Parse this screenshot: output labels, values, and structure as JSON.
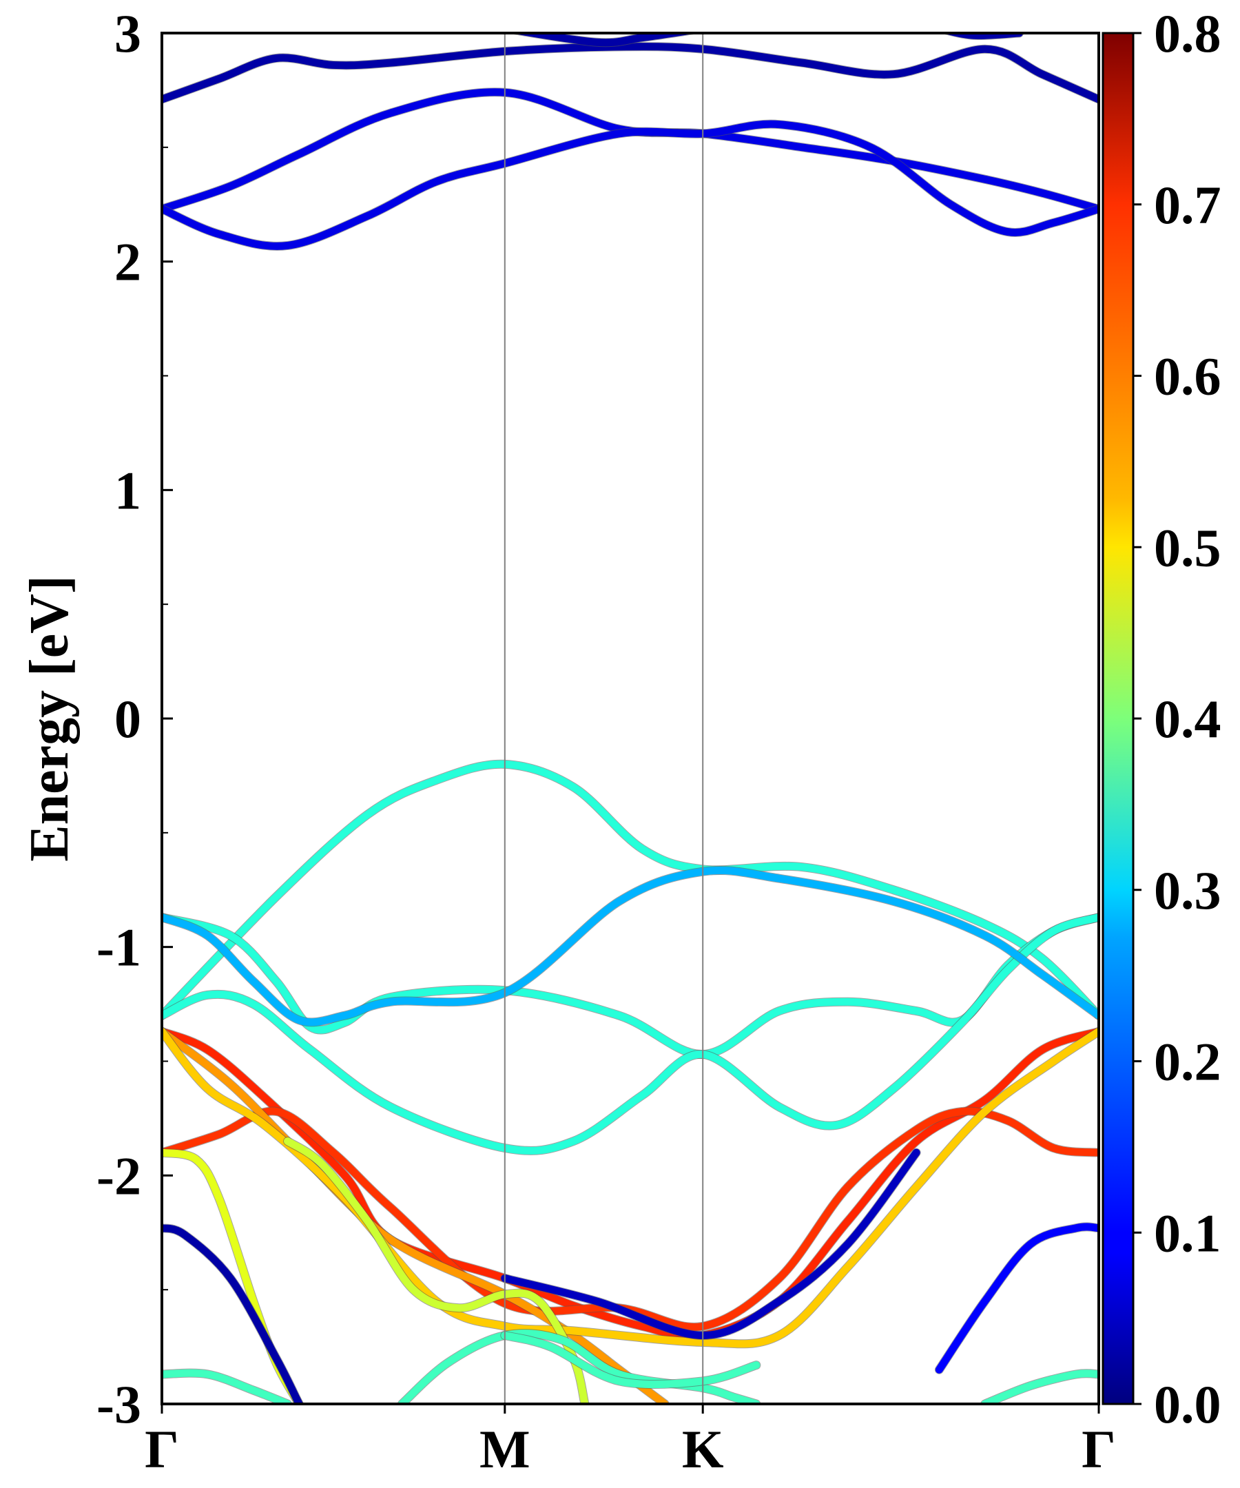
{
  "chart_data": {
    "type": "line",
    "title": "",
    "xlabel": "",
    "ylabel": "Energy [eV]",
    "ylim": [
      -3,
      3
    ],
    "y_ticks": [
      -3,
      -2,
      -1,
      0,
      1,
      2,
      3
    ],
    "y_tick_labels": [
      "-3",
      "-2",
      "-1",
      "0",
      "1",
      "2",
      "3"
    ],
    "k_path": [
      {
        "label": "Γ",
        "x": 0.0
      },
      {
        "label": "M",
        "x": 1.5
      },
      {
        "label": "K",
        "x": 2.366
      },
      {
        "label": "Γ",
        "x": 4.098
      }
    ],
    "colorbar": {
      "colormap": "jet",
      "range": [
        0.0,
        0.8
      ],
      "ticks": [
        "0.0",
        "0.1",
        "0.2",
        "0.3",
        "0.4",
        "0.5",
        "0.6",
        "0.7",
        "0.8"
      ]
    },
    "series": [
      {
        "color_value": 0.03,
        "points": [
          [
            0,
            2.71
          ],
          [
            0.25,
            2.8
          ],
          [
            0.5,
            2.89
          ],
          [
            0.75,
            2.86
          ],
          [
            1.0,
            2.87
          ],
          [
            1.5,
            2.92
          ],
          [
            2.0,
            2.94
          ],
          [
            2.366,
            2.93
          ],
          [
            2.8,
            2.87
          ],
          [
            3.2,
            2.82
          ],
          [
            3.6,
            2.93
          ],
          [
            3.85,
            2.82
          ],
          [
            4.098,
            2.71
          ]
        ]
      },
      {
        "color_value": 0.03,
        "points": [
          [
            1.5,
            3.02
          ],
          [
            1.9,
            2.96
          ],
          [
            2.1,
            2.98
          ],
          [
            2.366,
            3.02
          ]
        ]
      },
      {
        "color_value": 0.03,
        "points": [
          [
            3.4,
            3.02
          ],
          [
            3.55,
            2.99
          ],
          [
            3.75,
            3.0
          ]
        ]
      },
      {
        "color_value": 0.08,
        "points": [
          [
            0,
            2.23
          ],
          [
            0.3,
            2.33
          ],
          [
            0.6,
            2.47
          ],
          [
            1.0,
            2.65
          ],
          [
            1.5,
            2.74
          ],
          [
            2.0,
            2.58
          ],
          [
            2.366,
            2.56
          ],
          [
            2.8,
            2.5
          ],
          [
            3.2,
            2.44
          ],
          [
            3.6,
            2.36
          ],
          [
            3.85,
            2.3
          ],
          [
            4.098,
            2.23
          ]
        ]
      },
      {
        "color_value": 0.08,
        "points": [
          [
            0,
            2.23
          ],
          [
            0.25,
            2.12
          ],
          [
            0.55,
            2.07
          ],
          [
            0.9,
            2.2
          ],
          [
            1.2,
            2.35
          ],
          [
            1.5,
            2.43
          ],
          [
            2.0,
            2.56
          ],
          [
            2.366,
            2.56
          ],
          [
            2.7,
            2.6
          ],
          [
            3.1,
            2.5
          ],
          [
            3.45,
            2.25
          ],
          [
            3.7,
            2.13
          ],
          [
            3.9,
            2.17
          ],
          [
            4.098,
            2.23
          ]
        ]
      },
      {
        "color_value": 0.33,
        "points": [
          [
            0,
            -1.3
          ],
          [
            0.5,
            -0.78
          ],
          [
            0.9,
            -0.42
          ],
          [
            1.2,
            -0.27
          ],
          [
            1.5,
            -0.2
          ],
          [
            1.8,
            -0.3
          ],
          [
            2.1,
            -0.57
          ],
          [
            2.366,
            -0.66
          ],
          [
            2.8,
            -0.65
          ],
          [
            3.2,
            -0.75
          ],
          [
            3.6,
            -0.9
          ],
          [
            3.85,
            -1.05
          ],
          [
            4.098,
            -1.3
          ]
        ]
      },
      {
        "color_value": 0.33,
        "points": [
          [
            0,
            -0.87
          ],
          [
            0.3,
            -0.95
          ],
          [
            0.5,
            -1.15
          ],
          [
            0.65,
            -1.35
          ],
          [
            0.8,
            -1.33
          ],
          [
            1.0,
            -1.22
          ],
          [
            1.5,
            -1.19
          ],
          [
            2.0,
            -1.3
          ],
          [
            2.366,
            -1.47
          ],
          [
            2.7,
            -1.28
          ],
          [
            3.0,
            -1.24
          ],
          [
            3.3,
            -1.28
          ],
          [
            3.5,
            -1.32
          ],
          [
            3.7,
            -1.08
          ],
          [
            3.9,
            -0.93
          ],
          [
            4.098,
            -0.87
          ]
        ]
      },
      {
        "color_value": 0.33,
        "points": [
          [
            0,
            -1.3
          ],
          [
            0.2,
            -1.21
          ],
          [
            0.4,
            -1.25
          ],
          [
            0.65,
            -1.45
          ],
          [
            1.0,
            -1.7
          ],
          [
            1.5,
            -1.88
          ],
          [
            1.8,
            -1.85
          ],
          [
            2.1,
            -1.65
          ],
          [
            2.366,
            -1.47
          ],
          [
            2.7,
            -1.7
          ],
          [
            2.95,
            -1.78
          ],
          [
            3.2,
            -1.62
          ],
          [
            3.5,
            -1.33
          ],
          [
            3.7,
            -1.1
          ],
          [
            3.9,
            -0.93
          ],
          [
            4.098,
            -0.87
          ]
        ]
      },
      {
        "color_value": 0.24,
        "points": [
          [
            0,
            -0.87
          ],
          [
            0.2,
            -0.95
          ],
          [
            0.4,
            -1.15
          ],
          [
            0.6,
            -1.32
          ],
          [
            0.8,
            -1.3
          ],
          [
            1.0,
            -1.24
          ],
          [
            1.5,
            -1.2
          ],
          [
            2.0,
            -0.8
          ],
          [
            2.366,
            -0.67
          ],
          [
            2.7,
            -0.7
          ],
          [
            3.2,
            -0.8
          ],
          [
            3.6,
            -0.95
          ],
          [
            3.85,
            -1.12
          ],
          [
            4.098,
            -1.3
          ]
        ]
      },
      {
        "color_value": 0.67,
        "points": [
          [
            0,
            -1.37
          ],
          [
            0.2,
            -1.45
          ],
          [
            0.45,
            -1.66
          ],
          [
            0.8,
            -2.0
          ],
          [
            1.0,
            -2.28
          ],
          [
            1.5,
            -2.45
          ],
          [
            1.8,
            -2.57
          ],
          [
            2.1,
            -2.66
          ],
          [
            2.366,
            -2.7
          ],
          [
            2.7,
            -2.55
          ],
          [
            3.0,
            -2.2
          ],
          [
            3.3,
            -1.85
          ],
          [
            3.6,
            -1.67
          ],
          [
            3.85,
            -1.45
          ],
          [
            4.098,
            -1.37
          ]
        ]
      },
      {
        "color_value": 0.66,
        "points": [
          [
            0,
            -1.9
          ],
          [
            0.25,
            -1.82
          ],
          [
            0.5,
            -1.72
          ],
          [
            0.75,
            -1.9
          ],
          [
            1.0,
            -2.14
          ],
          [
            1.5,
            -2.56
          ],
          [
            2.0,
            -2.58
          ],
          [
            2.366,
            -2.66
          ],
          [
            2.7,
            -2.45
          ],
          [
            3.0,
            -2.05
          ],
          [
            3.3,
            -1.8
          ],
          [
            3.5,
            -1.72
          ],
          [
            3.7,
            -1.76
          ],
          [
            3.9,
            -1.88
          ],
          [
            4.098,
            -1.9
          ]
        ]
      },
      {
        "color_value": 0.58,
        "points": [
          [
            0,
            -1.37
          ],
          [
            0.3,
            -1.6
          ],
          [
            0.6,
            -1.9
          ],
          [
            1.0,
            -2.28
          ],
          [
            1.5,
            -2.52
          ],
          [
            1.8,
            -2.7
          ],
          [
            2.0,
            -2.85
          ],
          [
            2.2,
            -3.0
          ]
        ]
      },
      {
        "color_value": 0.54,
        "points": [
          [
            0,
            -1.37
          ],
          [
            0.2,
            -1.62
          ],
          [
            0.45,
            -1.78
          ],
          [
            0.8,
            -2.1
          ],
          [
            1.2,
            -2.55
          ],
          [
            1.5,
            -2.66
          ],
          [
            1.8,
            -2.68
          ],
          [
            2.366,
            -2.73
          ],
          [
            2.7,
            -2.7
          ],
          [
            3.0,
            -2.4
          ],
          [
            3.3,
            -2.05
          ],
          [
            3.6,
            -1.72
          ],
          [
            3.9,
            -1.5
          ],
          [
            4.098,
            -1.37
          ]
        ]
      },
      {
        "color_value": 0.48,
        "points": [
          [
            0,
            -1.9
          ],
          [
            0.15,
            -1.93
          ],
          [
            0.25,
            -2.1
          ],
          [
            0.4,
            -2.55
          ],
          [
            0.5,
            -2.82
          ],
          [
            0.6,
            -3.0
          ]
        ]
      },
      {
        "color_value": 0.46,
        "points": [
          [
            0.55,
            -1.85
          ],
          [
            0.7,
            -1.95
          ],
          [
            0.9,
            -2.2
          ],
          [
            1.1,
            -2.5
          ],
          [
            1.3,
            -2.58
          ],
          [
            1.5,
            -2.52
          ],
          [
            1.65,
            -2.55
          ],
          [
            1.8,
            -2.8
          ],
          [
            1.85,
            -3.0
          ]
        ]
      },
      {
        "color_value": 0.03,
        "points": [
          [
            0,
            -2.23
          ],
          [
            0.1,
            -2.26
          ],
          [
            0.3,
            -2.45
          ],
          [
            0.5,
            -2.8
          ],
          [
            0.6,
            -3.0
          ]
        ]
      },
      {
        "color_value": 0.05,
        "points": [
          [
            1.5,
            -2.45
          ],
          [
            1.9,
            -2.55
          ],
          [
            2.366,
            -2.7
          ],
          [
            2.7,
            -2.55
          ],
          [
            3.0,
            -2.3
          ],
          [
            3.3,
            -1.9
          ]
        ]
      },
      {
        "color_value": 0.1,
        "points": [
          [
            3.4,
            -2.85
          ],
          [
            3.6,
            -2.55
          ],
          [
            3.8,
            -2.3
          ],
          [
            4.0,
            -2.23
          ],
          [
            4.098,
            -2.23
          ]
        ]
      },
      {
        "color_value": 0.35,
        "points": [
          [
            0,
            -2.87
          ],
          [
            0.2,
            -2.87
          ],
          [
            0.4,
            -2.94
          ],
          [
            0.55,
            -3.0
          ]
        ]
      },
      {
        "color_value": 0.35,
        "points": [
          [
            1.05,
            -3.0
          ],
          [
            1.25,
            -2.82
          ],
          [
            1.5,
            -2.7
          ],
          [
            1.75,
            -2.72
          ],
          [
            2.0,
            -2.87
          ],
          [
            2.366,
            -2.93
          ],
          [
            2.5,
            -2.97
          ],
          [
            2.6,
            -3.0
          ]
        ]
      },
      {
        "color_value": 0.35,
        "points": [
          [
            1.5,
            -2.7
          ],
          [
            1.7,
            -2.75
          ],
          [
            2.0,
            -2.9
          ],
          [
            2.366,
            -2.9
          ],
          [
            2.6,
            -2.83
          ]
        ]
      },
      {
        "color_value": 0.35,
        "points": [
          [
            3.6,
            -3.0
          ],
          [
            3.8,
            -2.92
          ],
          [
            4.0,
            -2.87
          ],
          [
            4.098,
            -2.87
          ]
        ]
      }
    ]
  }
}
